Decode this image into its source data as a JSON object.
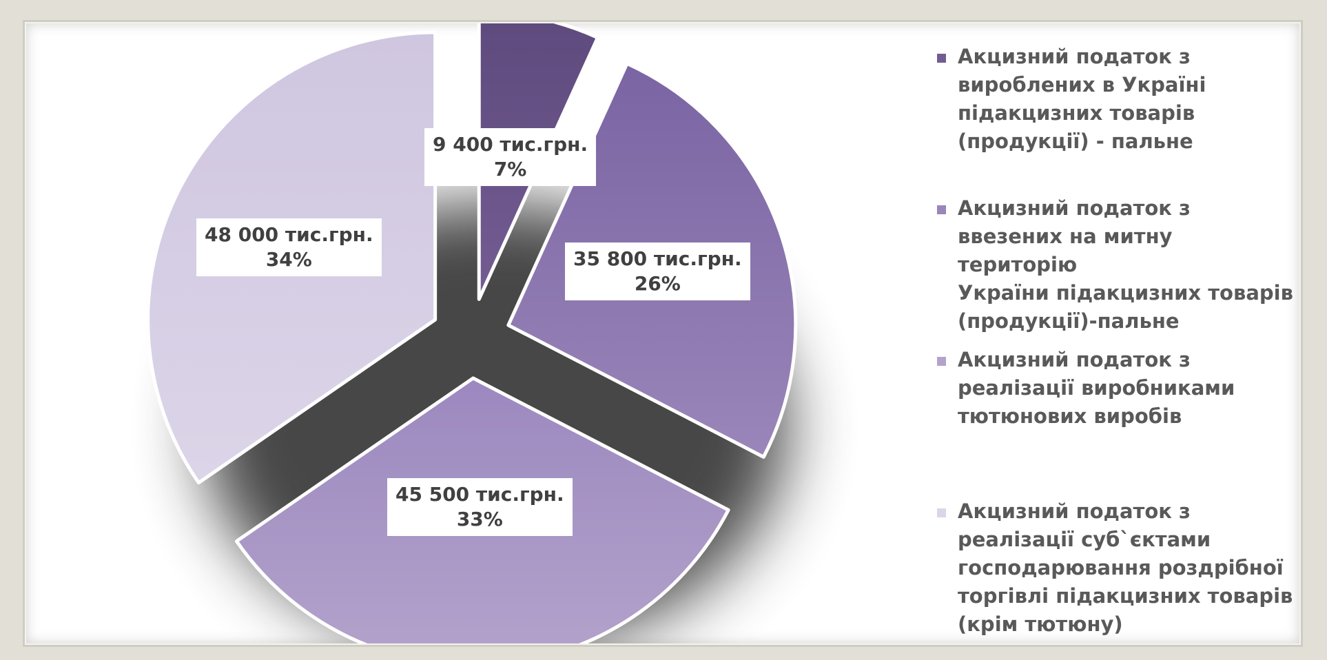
{
  "chart_data": {
    "type": "pie",
    "exploded": true,
    "categories": [
      "Акцизний податок з вироблених в Україні підакцизних товарів (продукції) - пальне",
      "Акцизний податок з ввезених на митну територію України підакцизних товарів (продукції)-пальне",
      "Акцизний податок з реалізації виробниками тютюнових виробів",
      "Акцизний податок з реалізації суб`єктами господарювання роздрібної торгівлі підакцизних товарів (крім тютюну)"
    ],
    "values": [
      9400,
      35800,
      45500,
      48000
    ],
    "percents": [
      7,
      26,
      33,
      34
    ],
    "value_labels": [
      "9 400 тис.грн.",
      "35 800 тис.грн.",
      "45 500 тис.грн.",
      "48 000 тис.грн."
    ],
    "percent_labels": [
      "7%",
      "26%",
      "33%",
      "34%"
    ],
    "colors": [
      "#735c92",
      "#9a86b9",
      "#b3a3cb",
      "#dcd5e8"
    ],
    "legend_lines": [
      "Акцизний податок з\nвироблених в Україні\nпідакцизних товарів\n(продукції) - пальне",
      "Акцизний податок з\nввезених на митну територію\nУкраїни підакцизних товарів\n(продукції)-пальне",
      "Акцизний податок з\nреалізації виробниками\nтютюнових виробів",
      "Акцизний податок з\nреалізації суб`єктами\nгосподарювання роздрібної\nторгівлі підакцизних товарів\n(крім тютюну)"
    ],
    "legend_position": "right"
  }
}
